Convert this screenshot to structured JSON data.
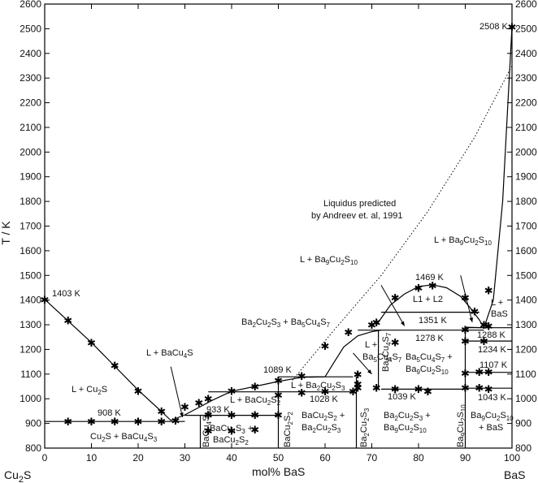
{
  "axes": {
    "x": {
      "min": 0,
      "max": 100,
      "ticks": [
        "0",
        "10",
        "20",
        "30",
        "40",
        "50",
        "60",
        "70",
        "80",
        "90",
        "100"
      ],
      "title": "mol% BaS"
    },
    "y": {
      "min": 800,
      "max": 2600,
      "title": "T / K",
      "ticks": [
        "800",
        "900",
        "1000",
        "1100",
        "1200",
        "1300",
        "1400",
        "1500",
        "1600",
        "1700",
        "1800",
        "1900",
        "2000",
        "2100",
        "2200",
        "2300",
        "2400",
        "2500",
        "2600"
      ]
    },
    "left_end": "Cu2S",
    "right_end": "BaS"
  },
  "temperatures": {
    "t1403": "1403 K",
    "t908": "908 K",
    "t933": "933 K",
    "t1089": "1089 K",
    "t1028": "1028 K",
    "t1039": "1039 K",
    "t1043": "1043 K",
    "t1469": "1469 K",
    "t1351": "1351 K",
    "t1278": "1278 K",
    "t1288": "1288 K",
    "t1234": "1234 K",
    "t1107": "1107 K",
    "t2508": "2508 K"
  },
  "phases": {
    "l_cu2s": "L + Cu2S",
    "l_bacu4s": "L + BaCu4S",
    "cu2s_bacu4s3": "Cu2S + BaCu4S3",
    "l_bacu2s2": "L + BaCu2S2",
    "l_ba2cu2s3": "L + Ba2Cu2S3",
    "ba2cu2s3_ba5cu4s7": "Ba2Cu2S3 + Ba5Cu4S7",
    "l_ba5cu4s7_a": "L +",
    "l_ba5cu4s7_b": "Ba5Cu4S7",
    "l1_l2": "L1 + L2",
    "ba5cu4s7_ba9_a": "Ba5Cu4S7 +",
    "ba5cu4s7_ba9_b": "Ba9Cu2S10",
    "l_ba9cu2s10": "L + Ba9Cu2S10",
    "l_bas_a": "L +",
    "l_bas_b": "BaS",
    "bacu4s3_bacu2s2_a": "BaCu4S3 +",
    "bacu4s3_bacu2s2_b": "BaCu2S2",
    "bacu2s2_ba2cu2s3_a": "BaCu2S2 +",
    "bacu2s2_ba2cu2s3_b": "Ba2Cu2S3",
    "ba2cu2s3_ba9_a": "Ba2Cu2S3 +",
    "ba2cu2s3_ba9_b": "Ba9Cu2S10",
    "ba9_bas_a": "Ba9Cu2S10",
    "ba9_bas_b": "+ BaS"
  },
  "compounds": {
    "bacu4s3": "BaCu4S3",
    "bacu2s2": "BaCu2S2",
    "ba2cu2s3": "Ba2Cu2S3",
    "ba5cu4s7": "Ba5Cu4S7",
    "ba9cu2s10": "Ba9Cu2S10"
  },
  "annotation": {
    "line1": "Liquidus predicted",
    "line2": "by Andreev et. al, 1991"
  },
  "marker_symbol": "✱",
  "experimental_points": [
    [
      0,
      1403
    ],
    [
      5,
      1318
    ],
    [
      10,
      1228
    ],
    [
      15,
      1135
    ],
    [
      20,
      1032
    ],
    [
      25,
      950
    ],
    [
      28,
      912
    ],
    [
      5,
      908
    ],
    [
      10,
      908
    ],
    [
      15,
      908
    ],
    [
      20,
      908
    ],
    [
      25,
      908
    ],
    [
      30,
      968
    ],
    [
      33,
      985
    ],
    [
      35,
      1000
    ],
    [
      40,
      1032
    ],
    [
      45,
      1050
    ],
    [
      50,
      1075
    ],
    [
      55,
      1093
    ],
    [
      35,
      935
    ],
    [
      40,
      935
    ],
    [
      45,
      935
    ],
    [
      50,
      935
    ],
    [
      35,
      870
    ],
    [
      40,
      870
    ],
    [
      45,
      875
    ],
    [
      50,
      1015
    ],
    [
      55,
      1025
    ],
    [
      60,
      1030
    ],
    [
      66,
      1030
    ],
    [
      60,
      1215
    ],
    [
      65,
      1270
    ],
    [
      70,
      1300
    ],
    [
      71,
      1310
    ],
    [
      75,
      1230
    ],
    [
      67,
      1100
    ],
    [
      67,
      1060
    ],
    [
      67,
      1045
    ],
    [
      71,
      1045
    ],
    [
      75,
      1040
    ],
    [
      80,
      1040
    ],
    [
      82,
      1030
    ],
    [
      75,
      1410
    ],
    [
      80,
      1450
    ],
    [
      83,
      1460
    ],
    [
      90,
      1410
    ],
    [
      92,
      1355
    ],
    [
      94,
      1300
    ],
    [
      95,
      1440
    ],
    [
      90,
      1280
    ],
    [
      90,
      1235
    ],
    [
      94,
      1235
    ],
    [
      95,
      1295
    ],
    [
      90,
      1105
    ],
    [
      93,
      1110
    ],
    [
      95,
      1110
    ],
    [
      90,
      1045
    ],
    [
      93,
      1045
    ],
    [
      95,
      1040
    ],
    [
      100,
      2508
    ]
  ]
}
